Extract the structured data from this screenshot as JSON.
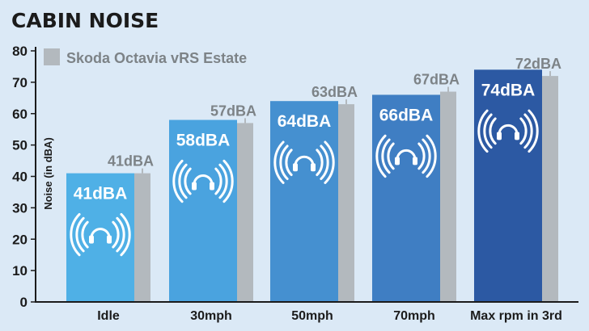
{
  "chart_data": {
    "type": "bar",
    "title": "CABIN NOISE",
    "xlabel": "",
    "ylabel": "Noise (in dBA)",
    "ylim": [
      0,
      80
    ],
    "yticks": [
      0,
      10,
      20,
      30,
      40,
      50,
      60,
      70,
      80
    ],
    "grid": false,
    "legend_position": "top-left",
    "categories": [
      "Idle",
      "30mph",
      "50mph",
      "70mph",
      "Max rpm in 3rd"
    ],
    "series": [
      {
        "values": [
          41,
          58,
          64,
          66,
          74
        ],
        "labels": [
          "41dBA",
          "58dBA",
          "64dBA",
          "66dBA",
          "74dBA"
        ],
        "colors": [
          "#4fb0e6",
          "#4aa3df",
          "#4590d0",
          "#3f7ec3",
          "#2c59a3"
        ],
        "icon": "headphones-sound-icon"
      },
      {
        "name": "Skoda Octavia vRS Estate",
        "values": [
          41,
          57,
          63,
          67,
          72
        ],
        "labels": [
          "41dBA",
          "57dBA",
          "63dBA",
          "67dBA",
          "72dBA"
        ],
        "color": "#b3b9be"
      }
    ],
    "colors": {
      "background": "#dbe9f6",
      "title": "#1b1b1b",
      "axis": "#1b1b1b",
      "label_grey": "#7d8387",
      "label_white": "#ffffff"
    }
  }
}
